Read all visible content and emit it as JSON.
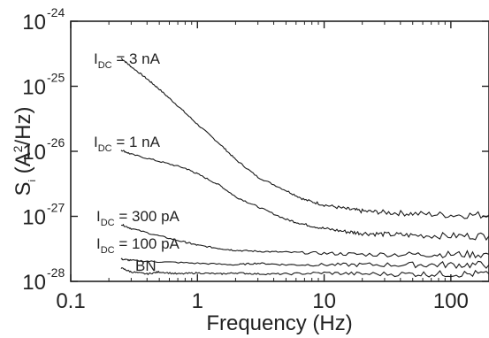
{
  "chart_data": {
    "type": "line",
    "xscale": "log",
    "yscale": "log",
    "xlim": [
      0.1,
      200
    ],
    "ylim": [
      1e-28,
      1e-24
    ],
    "xlabel": "Frequency (Hz)",
    "ylabel_prefix": "S",
    "ylabel_sub": "i",
    "ylabel_rest": " (A",
    "ylabel_sup": "2",
    "ylabel_end": "/Hz)",
    "x_ticks": [
      "0.1",
      "1",
      "10",
      "100"
    ],
    "y_tick_base": "10",
    "y_ticks_exp": [
      "-28",
      "-27",
      "-26",
      "-25",
      "-24"
    ],
    "series": [
      {
        "label_main": "I",
        "label_sub": "DC",
        "label_rest": " = 3 nA",
        "color": "#1a1a1a",
        "points": [
          [
            0.25,
            2.7e-25
          ],
          [
            0.3,
            2e-25
          ],
          [
            0.4,
            1.3e-25
          ],
          [
            0.5,
            9e-26
          ],
          [
            0.7,
            5e-26
          ],
          [
            1.0,
            2.6e-26
          ],
          [
            1.5,
            1.3e-26
          ],
          [
            2.0,
            7.5e-27
          ],
          [
            3.0,
            4e-27
          ],
          [
            5.0,
            2.5e-27
          ],
          [
            7.0,
            1.8e-27
          ],
          [
            10.0,
            1.5e-27
          ],
          [
            15.0,
            1.3e-27
          ],
          [
            20.0,
            1.2e-27
          ],
          [
            30.0,
            1.15e-27
          ],
          [
            50.0,
            1.1e-27
          ],
          [
            100.0,
            1.05e-27
          ],
          [
            200.0,
            1.05e-27
          ]
        ]
      },
      {
        "label_main": "I",
        "label_sub": "DC",
        "label_rest": " = 1 nA",
        "color": "#1a1a1a",
        "points": [
          [
            0.25,
            1.05e-26
          ],
          [
            0.3,
            9e-27
          ],
          [
            0.5,
            7e-27
          ],
          [
            0.8,
            5.5e-27
          ],
          [
            1.0,
            4.5e-27
          ],
          [
            1.5,
            3e-27
          ],
          [
            2.0,
            2e-27
          ],
          [
            3.0,
            1.4e-27
          ],
          [
            5.0,
            9e-28
          ],
          [
            7.0,
            7.5e-28
          ],
          [
            10.0,
            6.5e-28
          ],
          [
            15.0,
            5.8e-28
          ],
          [
            20.0,
            5.5e-28
          ],
          [
            30.0,
            5.3e-28
          ],
          [
            50.0,
            5.1e-28
          ],
          [
            100.0,
            5e-28
          ],
          [
            200.0,
            5e-28
          ]
        ]
      },
      {
        "label_main": "I",
        "label_sub": "DC",
        "label_rest": " = 300 pA",
        "color": "#1a1a1a",
        "points": [
          [
            0.25,
            7.5e-28
          ],
          [
            0.3,
            6.5e-28
          ],
          [
            0.5,
            5e-28
          ],
          [
            0.8,
            4e-28
          ],
          [
            1.0,
            3.6e-28
          ],
          [
            1.5,
            3.2e-28
          ],
          [
            2.0,
            3e-28
          ],
          [
            3.0,
            2.9e-28
          ],
          [
            5.0,
            2.8e-28
          ],
          [
            10.0,
            2.7e-28
          ],
          [
            20.0,
            2.6e-28
          ],
          [
            50.0,
            2.6e-28
          ],
          [
            100.0,
            2.6e-28
          ],
          [
            200.0,
            2.6e-28
          ]
        ]
      },
      {
        "label_main": "I",
        "label_sub": "DC",
        "label_rest": " = 100 pA",
        "color": "#1a1a1a",
        "points": [
          [
            0.25,
            2.2e-28
          ],
          [
            0.3,
            2.1e-28
          ],
          [
            0.5,
            2e-28
          ],
          [
            1.0,
            1.9e-28
          ],
          [
            2.0,
            1.8e-28
          ],
          [
            3.0,
            1.9e-28
          ],
          [
            5.0,
            1.8e-28
          ],
          [
            10.0,
            1.8e-28
          ],
          [
            20.0,
            1.8e-28
          ],
          [
            50.0,
            1.8e-28
          ],
          [
            100.0,
            1.8e-28
          ],
          [
            200.0,
            1.8e-28
          ]
        ]
      },
      {
        "label_main": "BN",
        "label_sub": "",
        "label_rest": "",
        "color": "#1a1a1a",
        "points": [
          [
            0.25,
            1.6e-28
          ],
          [
            0.3,
            1.4e-28
          ],
          [
            0.4,
            1.3e-28
          ],
          [
            0.5,
            1.4e-28
          ],
          [
            0.7,
            1.3e-28
          ],
          [
            1.0,
            1.35e-28
          ],
          [
            1.5,
            1.3e-28
          ],
          [
            2.0,
            1.35e-28
          ],
          [
            3.0,
            1.3e-28
          ],
          [
            5.0,
            1.3e-28
          ],
          [
            10.0,
            1.35e-28
          ],
          [
            20.0,
            1.3e-28
          ],
          [
            50.0,
            1.3e-28
          ],
          [
            100.0,
            1.3e-28
          ],
          [
            200.0,
            1.3e-28
          ]
        ]
      }
    ]
  }
}
